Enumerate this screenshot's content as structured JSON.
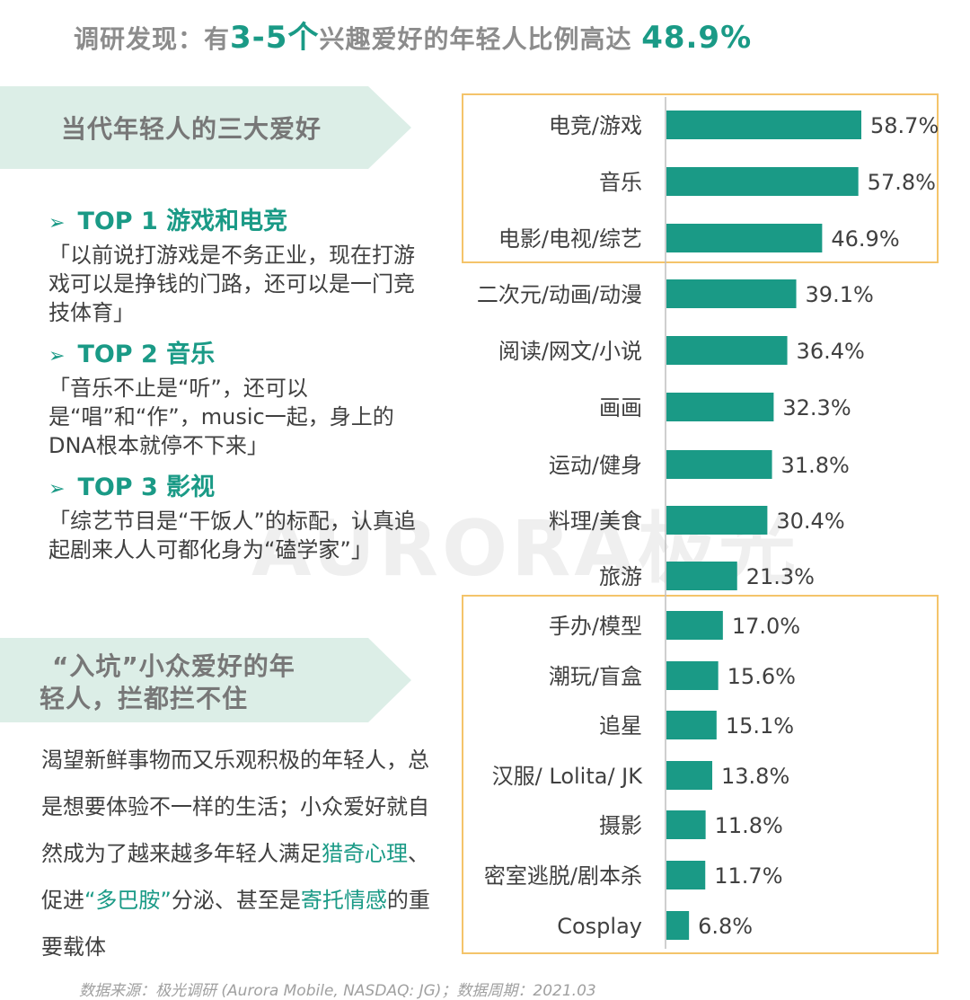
{
  "title": {
    "prefix": "调研发现：有",
    "highlight": "3-5个",
    "middle": "兴趣爱好的年轻人比例高达 ",
    "percent": "48.9%"
  },
  "banner1": {
    "label": "当代年轻人的三大爱好"
  },
  "tops": [
    {
      "head": "TOP 1 游戏和电竞",
      "quote": "「以前说打游戏是不务正业，现在打游戏可以是挣钱的门路，还可以是一门竞技体育」"
    },
    {
      "head": "TOP 2 音乐",
      "quote": "「音乐不止是“听”，还可以是“唱”和“作”，music一起，身上的DNA根本就停不下来」"
    },
    {
      "head": "TOP 3 影视",
      "quote": "「综艺节目是“干饭人”的标配，认真追起剧来人人可都化身为“磕学家”」"
    }
  ],
  "banner2": {
    "line1": "“入坑”小众爱好的年",
    "line2": "轻人，拦都拦不住"
  },
  "paragraph": {
    "part1": "渴望新鲜事物而又乐观积极的年轻人，总是想要体验不一样的生活；小众爱好就自然成为了越来越多年轻人满足",
    "hl1": "猎奇心理",
    "part2": "、促进",
    "hl2": "“多巴胺”",
    "part3": "分泌、甚至是",
    "hl3": "寄托情感",
    "part4": "的重要载体"
  },
  "source": "数据来源：极光调研 (Aurora Mobile, NASDAQ: JG)；数据周期：2021.03",
  "watermark": "AURORA极光",
  "colors": {
    "bar": "#1a9a86",
    "frame": "#f4c46a",
    "axis": "#bfbfbf"
  },
  "chart_data": {
    "type": "bar",
    "orientation": "horizontal",
    "unit": "%",
    "categories": [
      "电竞/游戏",
      "音乐",
      "电影/电视/综艺",
      "二次元/动画/动漫",
      "阅读/网文/小说",
      "画画",
      "运动/健身",
      "料理/美食",
      "旅游",
      "手办/模型",
      "潮玩/盲盒",
      "追星",
      "汉服/ Lolita/ JK",
      "摄影",
      "密室逃脱/剧本杀",
      "Cosplay"
    ],
    "values": [
      58.7,
      57.8,
      46.9,
      39.1,
      36.4,
      32.3,
      31.8,
      30.4,
      21.3,
      17.0,
      15.6,
      15.1,
      13.8,
      11.8,
      11.7,
      6.8
    ],
    "value_labels": [
      "58.7%",
      "57.8%",
      "46.9%",
      "39.1%",
      "36.4%",
      "32.3%",
      "31.8%",
      "30.4%",
      "21.3%",
      "17.0%",
      "15.6%",
      "15.1%",
      "13.8%",
      "11.8%",
      "11.7%",
      "6.8%"
    ],
    "xlim": [
      0,
      60
    ],
    "grid": false,
    "highlight_groups": [
      [
        0,
        2
      ],
      [
        9,
        15
      ]
    ]
  }
}
